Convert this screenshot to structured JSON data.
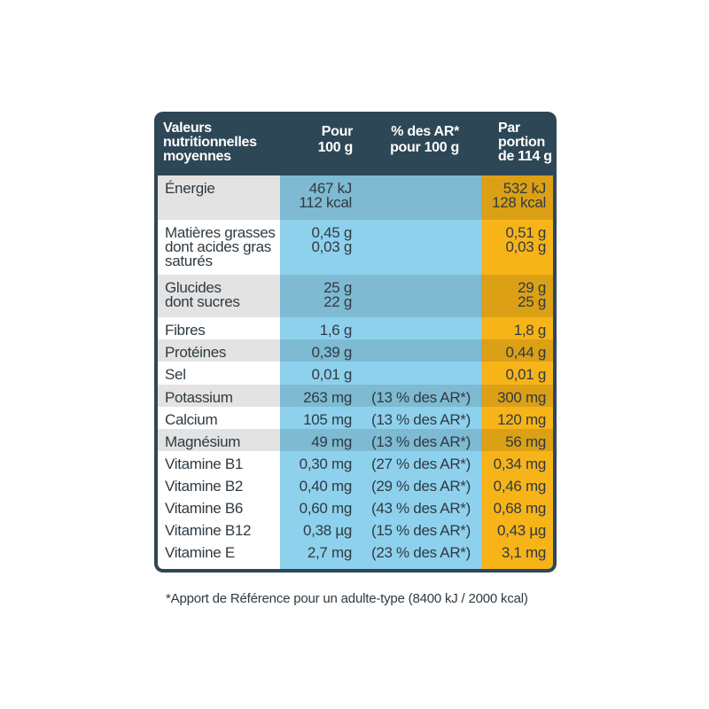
{
  "colors": {
    "header": "#2e4756",
    "label_col": "#ffffff",
    "pour_col": "#8ed1ec",
    "portion_col": "#f6b419",
    "text": "#2f3a42"
  },
  "header": {
    "label": [
      "Valeurs",
      "nutritionnelles",
      "moyennes"
    ],
    "pour": [
      "Pour",
      "100 g"
    ],
    "ar": [
      "% des AR*",
      "pour 100 g"
    ],
    "portion": [
      "Par",
      "portion",
      "de 114 g"
    ]
  },
  "rows": [
    {
      "label": [
        "Énergie"
      ],
      "per100": [
        "467 kJ",
        "112 kcal"
      ],
      "ar": [],
      "portion": [
        "532 kJ",
        "128 kcal"
      ]
    },
    {
      "label": [
        "Matières grasses",
        "dont acides gras",
        "saturés"
      ],
      "per100": [
        "0,45 g",
        "0,03 g"
      ],
      "ar": [],
      "portion": [
        "0,51 g",
        "0,03 g"
      ]
    },
    {
      "label": [
        "Glucides",
        "dont sucres"
      ],
      "per100": [
        "25 g",
        "22 g"
      ],
      "ar": [],
      "portion": [
        "29 g",
        "25 g"
      ]
    },
    {
      "label": [
        "Fibres"
      ],
      "per100": [
        "1,6 g"
      ],
      "ar": [],
      "portion": [
        "1,8 g"
      ]
    },
    {
      "label": [
        "Protéines"
      ],
      "per100": [
        "0,39 g"
      ],
      "ar": [],
      "portion": [
        "0,44 g"
      ]
    },
    {
      "label": [
        "Sel"
      ],
      "per100": [
        "0,01 g"
      ],
      "ar": [],
      "portion": [
        "0,01 g"
      ]
    },
    {
      "label": [
        "Potassium"
      ],
      "per100": [
        "263 mg"
      ],
      "ar": [
        "(13 % des AR*)"
      ],
      "portion": [
        "300 mg"
      ]
    },
    {
      "label": [
        "Calcium"
      ],
      "per100": [
        "105 mg"
      ],
      "ar": [
        "(13 % des AR*)"
      ],
      "portion": [
        "120 mg"
      ]
    },
    {
      "label": [
        "Magnésium"
      ],
      "per100": [
        "49 mg"
      ],
      "ar": [
        "(13 % des AR*)"
      ],
      "portion": [
        "56 mg"
      ]
    },
    {
      "label": [
        "Vitamine B1"
      ],
      "per100": [
        "0,30 mg"
      ],
      "ar": [
        "(27 % des AR*)"
      ],
      "portion": [
        "0,34 mg"
      ]
    },
    {
      "label": [
        "Vitamine B2"
      ],
      "per100": [
        "0,40 mg"
      ],
      "ar": [
        "(29 % des AR*)"
      ],
      "portion": [
        "0,46 mg"
      ]
    },
    {
      "label": [
        "Vitamine B6"
      ],
      "per100": [
        "0,60 mg"
      ],
      "ar": [
        "(43 % des AR*)"
      ],
      "portion": [
        "0,68 mg"
      ]
    },
    {
      "label": [
        "Vitamine B12"
      ],
      "per100": [
        "0,38 µg"
      ],
      "ar": [
        "(15 % des AR*)"
      ],
      "portion": [
        "0,43 µg"
      ]
    },
    {
      "label": [
        "Vitamine E"
      ],
      "per100": [
        "2,7 mg"
      ],
      "ar": [
        "(23 % des AR*)"
      ],
      "portion": [
        "3,1 mg"
      ]
    }
  ],
  "footnote": "*Apport de Référence pour un adulte-type (8400 kJ / 2000 kcal)"
}
